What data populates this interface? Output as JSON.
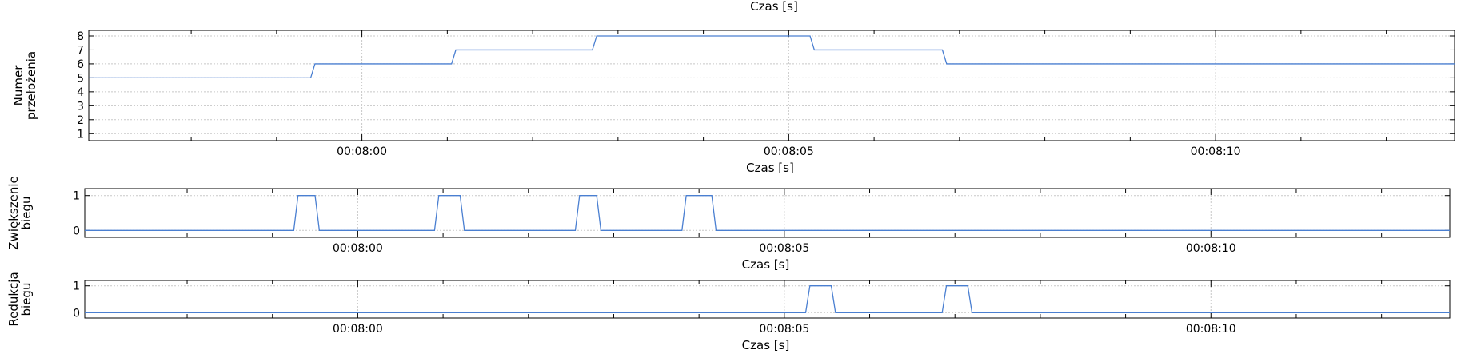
{
  "figure": {
    "top_title": "Czas [s]"
  },
  "colors": {
    "series": "#4a7fd1"
  },
  "chart_data": [
    {
      "type": "line",
      "xlabel": "Czas [s]",
      "ylabel": [
        "Numer",
        "przełożenia"
      ],
      "x_unit": "seconds",
      "xlim": [
        "00:07:56.80",
        "00:08:12.80"
      ],
      "ylim": [
        0.5,
        8.4
      ],
      "yticks": [
        1,
        2,
        3,
        4,
        5,
        6,
        7,
        8
      ],
      "xticks": [
        {
          "t": "00:07:58",
          "label": ""
        },
        {
          "t": "00:07:59",
          "label": ""
        },
        {
          "t": "00:08:00",
          "label": "00:08:00"
        },
        {
          "t": "00:08:01",
          "label": ""
        },
        {
          "t": "00:08:02",
          "label": ""
        },
        {
          "t": "00:08:03",
          "label": ""
        },
        {
          "t": "00:08:04",
          "label": ""
        },
        {
          "t": "00:08:05",
          "label": "00:08:05"
        },
        {
          "t": "00:08:06",
          "label": ""
        },
        {
          "t": "00:08:07",
          "label": ""
        },
        {
          "t": "00:08:08",
          "label": ""
        },
        {
          "t": "00:08:09",
          "label": ""
        },
        {
          "t": "00:08:10",
          "label": "00:08:10"
        },
        {
          "t": "00:08:11",
          "label": ""
        },
        {
          "t": "00:08:12",
          "label": ""
        }
      ],
      "grid": true,
      "series": [
        {
          "points": [
            [
              "00:07:56.80",
              5
            ],
            [
              "00:07:59.40",
              5
            ],
            [
              "00:07:59.45",
              6
            ],
            [
              "00:08:01.05",
              6
            ],
            [
              "00:08:01.10",
              7
            ],
            [
              "00:08:02.70",
              7
            ],
            [
              "00:08:02.75",
              8
            ],
            [
              "00:08:05.25",
              8
            ],
            [
              "00:08:05.30",
              7
            ],
            [
              "00:08:06.80",
              7
            ],
            [
              "00:08:06.85",
              6
            ],
            [
              "00:08:12.80",
              6
            ]
          ]
        }
      ]
    },
    {
      "type": "line",
      "xlabel": "Czas [s]",
      "ylabel": [
        "Zwiększenie",
        "biegu"
      ],
      "x_unit": "seconds",
      "xlim": [
        "00:07:56.80",
        "00:08:12.80"
      ],
      "ylim": [
        -0.2,
        1.2
      ],
      "yticks": [
        0,
        1
      ],
      "xticks": [
        {
          "t": "00:07:58",
          "label": ""
        },
        {
          "t": "00:07:59",
          "label": ""
        },
        {
          "t": "00:08:00",
          "label": "00:08:00"
        },
        {
          "t": "00:08:01",
          "label": ""
        },
        {
          "t": "00:08:02",
          "label": ""
        },
        {
          "t": "00:08:03",
          "label": ""
        },
        {
          "t": "00:08:04",
          "label": ""
        },
        {
          "t": "00:08:05",
          "label": "00:08:05"
        },
        {
          "t": "00:08:06",
          "label": ""
        },
        {
          "t": "00:08:07",
          "label": ""
        },
        {
          "t": "00:08:08",
          "label": ""
        },
        {
          "t": "00:08:09",
          "label": ""
        },
        {
          "t": "00:08:10",
          "label": "00:08:10"
        },
        {
          "t": "00:08:11",
          "label": ""
        },
        {
          "t": "00:08:12",
          "label": ""
        }
      ],
      "grid": true,
      "series": [
        {
          "points": [
            [
              "00:07:56.80",
              0
            ],
            [
              "00:07:59.25",
              0
            ],
            [
              "00:07:59.30",
              1
            ],
            [
              "00:07:59.50",
              1
            ],
            [
              "00:07:59.55",
              0
            ],
            [
              "00:08:00.90",
              0
            ],
            [
              "00:08:00.95",
              1
            ],
            [
              "00:08:01.20",
              1
            ],
            [
              "00:08:01.25",
              0
            ],
            [
              "00:08:02.55",
              0
            ],
            [
              "00:08:02.60",
              1
            ],
            [
              "00:08:02.80",
              1
            ],
            [
              "00:08:02.85",
              0
            ],
            [
              "00:08:03.80",
              0
            ],
            [
              "00:08:03.85",
              1
            ],
            [
              "00:08:04.15",
              1
            ],
            [
              "00:08:04.20",
              0
            ],
            [
              "00:08:12.80",
              0
            ]
          ]
        }
      ]
    },
    {
      "type": "line",
      "xlabel": "Czas [s]",
      "ylabel": [
        "Redukcja",
        "biegu"
      ],
      "x_unit": "seconds",
      "xlim": [
        "00:07:56.80",
        "00:08:12.80"
      ],
      "ylim": [
        -0.2,
        1.2
      ],
      "yticks": [
        0,
        1
      ],
      "xticks": [
        {
          "t": "00:07:58",
          "label": ""
        },
        {
          "t": "00:07:59",
          "label": ""
        },
        {
          "t": "00:08:00",
          "label": "00:08:00"
        },
        {
          "t": "00:08:01",
          "label": ""
        },
        {
          "t": "00:08:02",
          "label": ""
        },
        {
          "t": "00:08:03",
          "label": ""
        },
        {
          "t": "00:08:04",
          "label": ""
        },
        {
          "t": "00:08:05",
          "label": "00:08:05"
        },
        {
          "t": "00:08:06",
          "label": ""
        },
        {
          "t": "00:08:07",
          "label": ""
        },
        {
          "t": "00:08:08",
          "label": ""
        },
        {
          "t": "00:08:09",
          "label": ""
        },
        {
          "t": "00:08:10",
          "label": "00:08:10"
        },
        {
          "t": "00:08:11",
          "label": ""
        },
        {
          "t": "00:08:12",
          "label": ""
        }
      ],
      "grid": true,
      "series": [
        {
          "points": [
            [
              "00:07:56.80",
              0
            ],
            [
              "00:08:05.25",
              0
            ],
            [
              "00:08:05.30",
              1
            ],
            [
              "00:08:05.55",
              1
            ],
            [
              "00:08:05.60",
              0
            ],
            [
              "00:08:06.85",
              0
            ],
            [
              "00:08:06.90",
              1
            ],
            [
              "00:08:07.15",
              1
            ],
            [
              "00:08:07.20",
              0
            ],
            [
              "00:08:12.80",
              0
            ]
          ]
        }
      ]
    }
  ]
}
